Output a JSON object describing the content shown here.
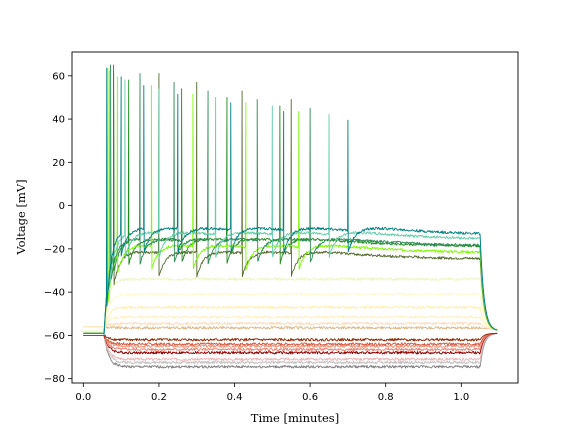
{
  "chart_data": {
    "type": "line",
    "title": "",
    "xlabel": "Time [minutes]",
    "ylabel": "Voltage [mV]",
    "xlim": [
      -0.03,
      1.15
    ],
    "ylim": [
      -82,
      71
    ],
    "x_ticks": [
      0.0,
      0.2,
      0.4,
      0.6,
      0.8,
      1.0
    ],
    "x_tick_labels": [
      "0.0",
      "0.2",
      "0.4",
      "0.6",
      "0.8",
      "1.0"
    ],
    "y_ticks": [
      -80,
      -60,
      -40,
      -20,
      0,
      20,
      40,
      60
    ],
    "y_tick_labels": [
      "−80",
      "−60",
      "−40",
      "−20",
      "0",
      "20",
      "40",
      "60"
    ],
    "grid": false,
    "legend": "none",
    "stimulus": {
      "onset": 0.055,
      "offset": 1.05,
      "trace_end": 1.095
    },
    "series": [
      {
        "color": "#7f7f7f",
        "baseline": -60,
        "plateau": -74.5,
        "end": -59
      },
      {
        "color": "#c0c0c0",
        "baseline": -60,
        "plateau": -72.5,
        "end": -59
      },
      {
        "color": "#e8b4b8",
        "baseline": -60,
        "plateau": -71,
        "end": -59
      },
      {
        "color": "#8b0000",
        "baseline": -60,
        "plateau": -68,
        "end": -59
      },
      {
        "color": "#f08070",
        "baseline": -60,
        "plateau": -66.5,
        "end": -59
      },
      {
        "color": "#e9967a",
        "baseline": -60,
        "plateau": -65,
        "end": -59
      },
      {
        "color": "#d8573c",
        "baseline": -60,
        "plateau": -64,
        "end": -59
      },
      {
        "color": "#8b2500",
        "baseline": -60,
        "plateau": -62,
        "end": -59
      },
      {
        "color": "#deb887",
        "baseline": -56,
        "plateau": -56.5,
        "end": -57
      },
      {
        "color": "#ffdab9",
        "baseline": -56,
        "plateau": -54.5,
        "end": -57
      },
      {
        "color": "#fff1c4",
        "baseline": -56,
        "plateau": -51.5,
        "end": -57
      },
      {
        "color": "#fff0b0",
        "baseline": -58,
        "plateau": -47,
        "end": -57
      },
      {
        "color": "#fffacd",
        "baseline": -58,
        "plateau": -41,
        "end": -57
      },
      {
        "color": "#eef5c0",
        "baseline": -58,
        "plateau": -34,
        "end": -57
      },
      {
        "color": "#556b2f",
        "baseline": -59,
        "plateau": -25,
        "end": -58,
        "spikes": [
          0.08,
          0.2,
          0.3,
          0.42,
          0.55
        ]
      },
      {
        "color": "#228b22",
        "baseline": -59,
        "plateau": -19,
        "end": -58,
        "spikes": [
          0.08,
          0.12,
          0.26,
          0.38,
          0.52
        ]
      },
      {
        "color": "#7cfc00",
        "baseline": -59,
        "plateau": -22,
        "end": -58,
        "spikes": [
          0.065,
          0.09,
          0.18,
          0.29,
          0.43,
          0.57
        ]
      },
      {
        "color": "#2e8b57",
        "baseline": -59,
        "plateau": -19,
        "end": -58,
        "spikes": [
          0.072,
          0.15,
          0.24,
          0.33,
          0.46,
          0.6
        ]
      },
      {
        "color": "#66cdaa",
        "baseline": -60,
        "plateau": -16,
        "end": -58,
        "spikes": [
          0.07,
          0.11,
          0.2,
          0.35,
          0.5,
          0.65
        ]
      },
      {
        "color": "#008080",
        "baseline": -60,
        "plateau": -14,
        "end": -58,
        "spikes": [
          0.062,
          0.1,
          0.16,
          0.25,
          0.39,
          0.53,
          0.7
        ]
      }
    ]
  }
}
